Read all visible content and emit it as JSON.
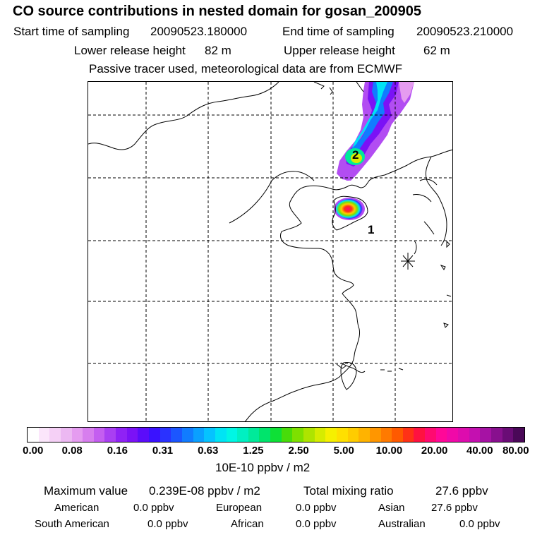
{
  "header": {
    "title": "CO  source contributions in nested domain for gosan_200905",
    "start_label": "Start time of sampling",
    "start_value": "20090523.180000",
    "end_label": "End time of sampling",
    "end_value": "20090523.210000",
    "lower_label": "Lower release height",
    "lower_value": "82 m",
    "upper_label": "Upper release height",
    "upper_value": "62 m",
    "note": "Passive tracer used, meteorological data are from ECMWF"
  },
  "map": {
    "markers": [
      "1",
      "2"
    ],
    "station_icon": "asterisk-station-icon"
  },
  "colorbar": {
    "colors": [
      "#ffffff",
      "#fbe6fb",
      "#f5d0f6",
      "#ecb8f2",
      "#e59cf0",
      "#d77eee",
      "#c45ef0",
      "#a93ff2",
      "#8f22f5",
      "#7b12f6",
      "#5b0cfa",
      "#3a12ff",
      "#2a32ff",
      "#1c56ff",
      "#117cff",
      "#0aa0ff",
      "#05c3ff",
      "#00e4f4",
      "#00f6e4",
      "#00f0c2",
      "#00ea9a",
      "#00e46c",
      "#0ee036",
      "#48dc0a",
      "#7ee000",
      "#aee400",
      "#d6ec00",
      "#f6f000",
      "#ffe000",
      "#ffcc00",
      "#ffb300",
      "#ff9600",
      "#ff7a00",
      "#ff5a00",
      "#ff3216",
      "#ff1240",
      "#ff0a70",
      "#ff0898",
      "#f009a8",
      "#dd0cae",
      "#c410b0",
      "#a612a4",
      "#88108e",
      "#6a0c76",
      "#4a0858"
    ],
    "tick_labels": [
      "0.00",
      "0.08",
      "0.16",
      "0.31",
      "0.63",
      "1.25",
      "2.50",
      "5.00",
      "10.00",
      "20.00",
      "40.00",
      "80.00"
    ],
    "unit": "10E-10 ppbv / m2"
  },
  "summary": {
    "max_label": "Maximum value",
    "max_value": "0.239E-08 ppbv / m2",
    "total_label": "Total mixing ratio",
    "total_value": "27.6 ppbv",
    "regions": [
      {
        "name": "American",
        "value": "0.0 ppbv"
      },
      {
        "name": "European",
        "value": "0.0 ppbv"
      },
      {
        "name": "Asian",
        "value": "27.6 ppbv"
      },
      {
        "name": "South American",
        "value": "0.0 ppbv"
      },
      {
        "name": "African",
        "value": "0.0 ppbv"
      },
      {
        "name": "Australian",
        "value": "0.0 ppbv"
      }
    ]
  }
}
